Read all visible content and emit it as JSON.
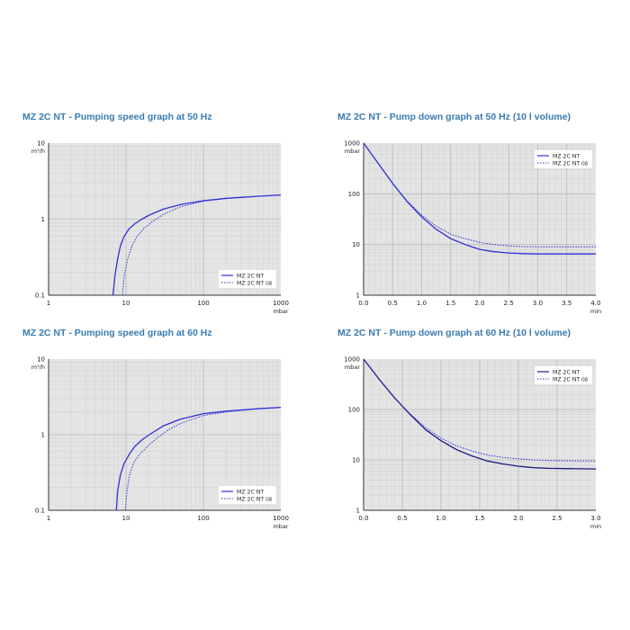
{
  "chart_data": [
    {
      "type": "line",
      "title": "MZ 2C NT - Pumping speed graph at 50 Hz",
      "xscale": "log",
      "yscale": "log",
      "xlabel": "mbar",
      "ylabel": "m³/h",
      "xlim": [
        1,
        1000
      ],
      "ylim": [
        0.1,
        10
      ],
      "xticks": [
        "1",
        "10",
        "100",
        "1000"
      ],
      "yticks": [
        "0.1",
        "1",
        "10"
      ],
      "grid": true,
      "legend": "bottom-right",
      "series": [
        {
          "name": "MZ 2C NT",
          "style": "solid",
          "color": "#3030d8",
          "x": [
            6.8,
            7.2,
            7.8,
            8.5,
            9.5,
            11,
            13,
            16,
            20,
            30,
            50,
            100,
            200,
            500,
            1000
          ],
          "y": [
            0.1,
            0.18,
            0.3,
            0.45,
            0.6,
            0.75,
            0.87,
            1.0,
            1.13,
            1.35,
            1.55,
            1.75,
            1.88,
            2.0,
            2.08
          ]
        },
        {
          "name": "MZ 2C NT GB",
          "style": "dotted",
          "color": "#3030d8",
          "x": [
            9.0,
            9.5,
            10.5,
            12,
            14,
            17,
            22,
            30,
            50,
            100,
            200,
            500,
            1000
          ],
          "y": [
            0.1,
            0.18,
            0.3,
            0.45,
            0.6,
            0.75,
            0.93,
            1.15,
            1.45,
            1.72,
            1.87,
            2.0,
            2.08
          ]
        }
      ]
    },
    {
      "type": "line",
      "title": "MZ 2C NT - Pump down graph at 50 Hz (10 l volume)",
      "xscale": "linear",
      "yscale": "log",
      "xlabel": "min",
      "ylabel": "mbar",
      "xlim": [
        0,
        4
      ],
      "ylim": [
        1,
        1000
      ],
      "xticks": [
        "0.0",
        "0.5",
        "1.0",
        "1.5",
        "2.0",
        "2.5",
        "3.0",
        "3.5",
        "4.0"
      ],
      "yticks": [
        "1",
        "10",
        "100",
        "1000"
      ],
      "grid": true,
      "legend": "top-right",
      "series": [
        {
          "name": "MZ 2C NT",
          "style": "solid",
          "color": "#3030d8",
          "x": [
            0,
            0.25,
            0.5,
            0.75,
            1.0,
            1.25,
            1.5,
            1.75,
            2.0,
            2.25,
            2.5,
            2.75,
            3.0,
            3.5,
            4.0
          ],
          "y": [
            1000,
            400,
            160,
            70,
            35,
            20,
            13,
            10,
            8,
            7.2,
            6.8,
            6.6,
            6.5,
            6.5,
            6.5
          ]
        },
        {
          "name": "MZ 2C NT GB",
          "style": "dotted",
          "color": "#3030d8",
          "x": [
            0,
            0.25,
            0.5,
            0.75,
            1.0,
            1.25,
            1.5,
            1.75,
            2.0,
            2.25,
            2.5,
            2.75,
            3.0,
            3.5,
            4.0
          ],
          "y": [
            1000,
            400,
            160,
            72,
            38,
            23,
            16,
            13,
            11,
            10,
            9.4,
            9.1,
            9.0,
            9.0,
            9.0
          ]
        }
      ]
    },
    {
      "type": "line",
      "title": "MZ 2C NT - Pumping speed graph at 60 Hz",
      "xscale": "log",
      "yscale": "log",
      "xlabel": "mbar",
      "ylabel": "m³/h",
      "xlim": [
        1,
        1000
      ],
      "ylim": [
        0.1,
        10
      ],
      "xticks": [
        "1",
        "10",
        "100",
        "1000"
      ],
      "yticks": [
        "0.1",
        "1",
        "10"
      ],
      "grid": true,
      "legend": "bottom-right",
      "series": [
        {
          "name": "MZ 2C NT",
          "style": "solid",
          "color": "#3030d8",
          "x": [
            7.5,
            7.8,
            8.5,
            9.5,
            11,
            13,
            16,
            20,
            30,
            50,
            100,
            200,
            500,
            1000
          ],
          "y": [
            0.1,
            0.18,
            0.3,
            0.42,
            0.55,
            0.7,
            0.85,
            1.0,
            1.3,
            1.6,
            1.9,
            2.05,
            2.2,
            2.3
          ]
        },
        {
          "name": "MZ 2C NT GB",
          "style": "dotted",
          "color": "#3030d8",
          "x": [
            9.8,
            10.3,
            11.2,
            12.5,
            15,
            19,
            25,
            35,
            50,
            100,
            200,
            500,
            1000
          ],
          "y": [
            0.1,
            0.18,
            0.3,
            0.42,
            0.55,
            0.7,
            0.9,
            1.15,
            1.4,
            1.8,
            2.0,
            2.2,
            2.3
          ]
        }
      ]
    },
    {
      "type": "line",
      "title": "MZ 2C NT - Pump down graph at 60 Hz (10 l volume)",
      "xscale": "linear",
      "yscale": "log",
      "xlabel": "min",
      "ylabel": "mbar",
      "xlim": [
        0,
        3
      ],
      "ylim": [
        1,
        1000
      ],
      "xticks": [
        "0.0",
        "0.5",
        "1.0",
        "1.5",
        "2.0",
        "2.5",
        "3.0"
      ],
      "yticks": [
        "1",
        "10",
        "100",
        "1000"
      ],
      "grid": true,
      "legend": "top-right",
      "series": [
        {
          "name": "MZ 2C NT",
          "style": "solid",
          "color": "#1a1a80",
          "x": [
            0,
            0.2,
            0.4,
            0.6,
            0.8,
            1.0,
            1.2,
            1.4,
            1.6,
            1.8,
            2.0,
            2.2,
            2.4,
            2.6,
            3.0
          ],
          "y": [
            1000,
            400,
            170,
            80,
            40,
            24,
            16,
            12,
            9.5,
            8.3,
            7.5,
            7.0,
            6.8,
            6.7,
            6.6
          ]
        },
        {
          "name": "MZ 2C NT GB",
          "style": "dotted",
          "color": "#3030d8",
          "x": [
            0,
            0.2,
            0.4,
            0.6,
            0.8,
            1.0,
            1.2,
            1.4,
            1.6,
            1.8,
            2.0,
            2.2,
            2.4,
            2.6,
            3.0
          ],
          "y": [
            1000,
            400,
            170,
            82,
            44,
            27,
            19,
            15,
            12.5,
            11.2,
            10.5,
            10.0,
            9.7,
            9.6,
            9.5
          ]
        }
      ]
    }
  ]
}
